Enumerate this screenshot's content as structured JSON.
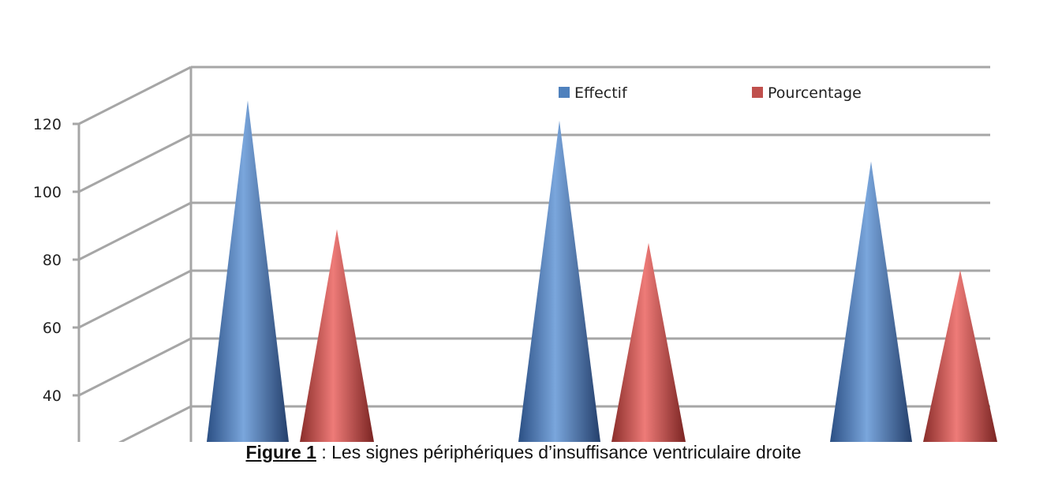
{
  "chart_data": {
    "type": "bar",
    "style": "3d-cone",
    "categories": [
      "",
      "",
      ""
    ],
    "series": [
      {
        "name": "Effectif",
        "values": [
          113,
          107,
          95
        ],
        "color": "#4F81BD"
      },
      {
        "name": "Pourcentage",
        "values": [
          75,
          71,
          63
        ],
        "color": "#C0504D"
      }
    ],
    "title": "",
    "xlabel": "",
    "ylabel": "",
    "ylim": [
      30,
      120
    ],
    "yticks": [
      "40",
      "60",
      "80",
      "100",
      "120"
    ],
    "grid": true,
    "legend_position": "top-right"
  },
  "caption": {
    "figure_label": "Figure 1",
    "text": " : Les signes périphériques d’insuffisance ventriculaire droite"
  }
}
